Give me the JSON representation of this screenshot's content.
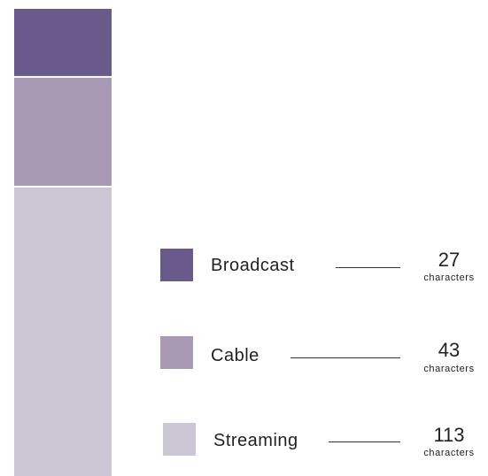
{
  "chart_data": {
    "type": "bar",
    "stacked": true,
    "categories": [
      "Broadcast",
      "Cable",
      "Streaming"
    ],
    "values": [
      27,
      43,
      113
    ],
    "colors": [
      "#6a5a8c",
      "#a89ab4",
      "#cbc6d4"
    ],
    "unit_label": "characters",
    "total": 183
  }
}
